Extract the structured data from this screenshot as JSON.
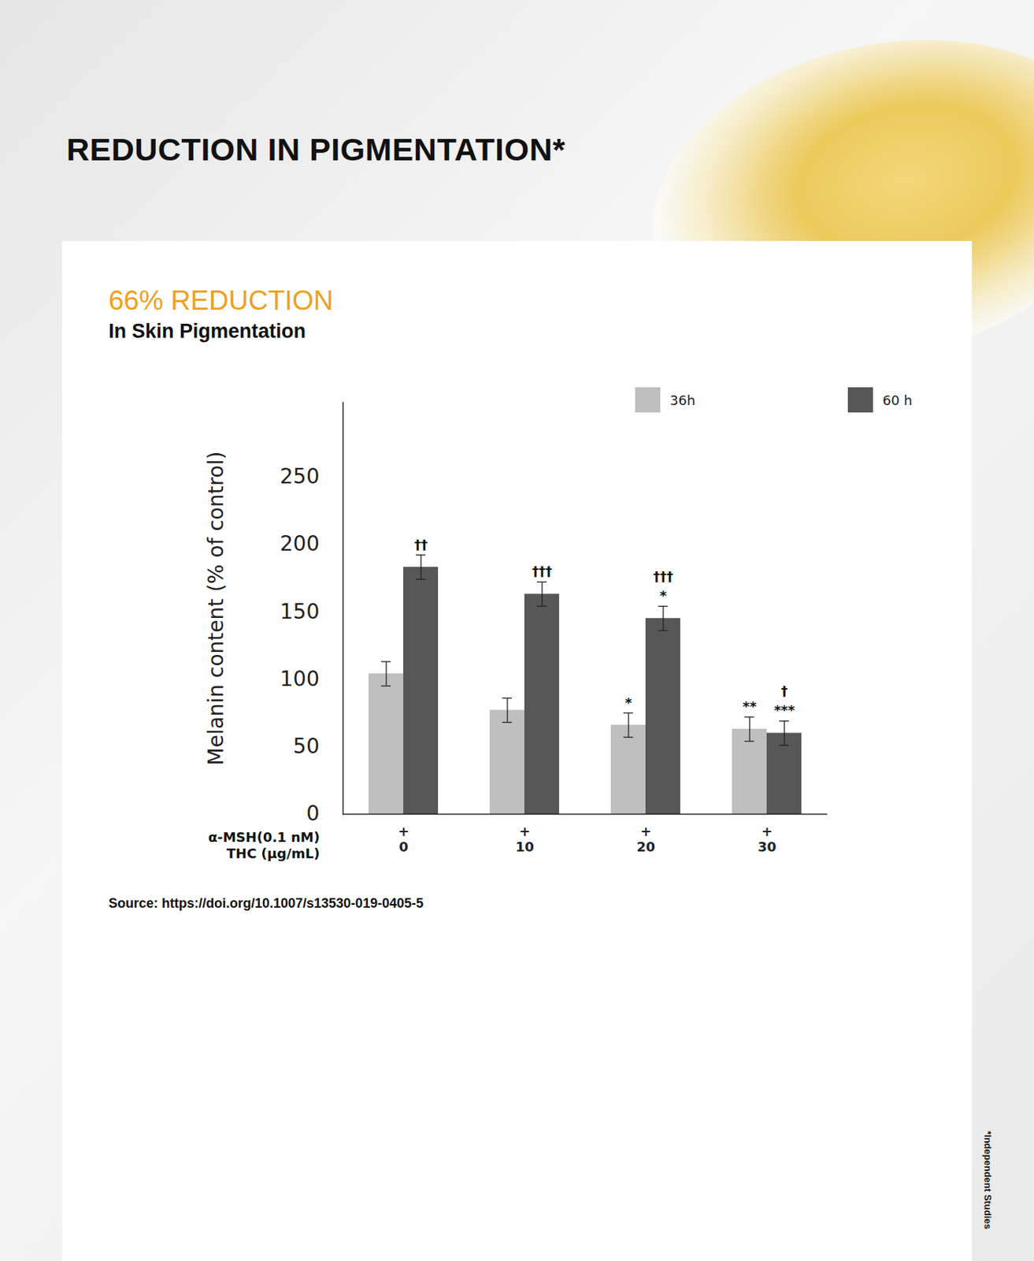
{
  "chart_data": {
    "type": "bar",
    "title": "REDUCTION IN PIGMENTATION*",
    "headline": "66% REDUCTION",
    "subtitle": "In Skin Pigmentation",
    "ylabel": "Melanin content (% of control)",
    "xlabel": "THC (μg/mL)",
    "x_rows": [
      {
        "label": "α-MSH(0.1 nM)",
        "values": [
          "+",
          "+",
          "+",
          "+"
        ]
      }
    ],
    "categories": [
      "0",
      "10",
      "20",
      "30"
    ],
    "series": [
      {
        "name": "36h",
        "color": "#c0bfbf",
        "values": [
          104,
          77,
          66,
          63
        ],
        "errors": [
          9,
          9,
          9,
          9
        ],
        "significance": [
          null,
          null,
          [
            "*"
          ],
          [
            "**"
          ]
        ]
      },
      {
        "name": "60 h",
        "color": "#575757",
        "values": [
          183,
          163,
          145,
          60
        ],
        "errors": [
          9,
          9,
          9,
          9
        ],
        "significance": [
          [
            "††"
          ],
          [
            "†††"
          ],
          [
            "†††",
            "*"
          ],
          [
            "†",
            "***"
          ]
        ]
      }
    ],
    "ylim": [
      0,
      305
    ],
    "yticks": [
      0,
      50,
      100,
      150,
      200,
      250
    ],
    "grid": false,
    "legend": "top-right",
    "source": "Source: https://doi.org/10.1007/s13530-019-0405-5",
    "footnote": "*Independent Studies"
  }
}
